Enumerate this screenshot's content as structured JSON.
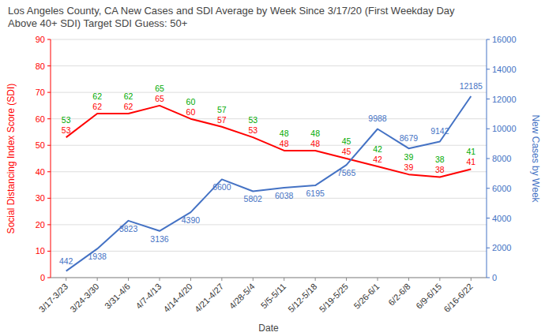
{
  "chart_data": {
    "type": "line",
    "title": "Los Angeles County, CA New Cases and SDI Average by Week Since 3/17/20 (First Weekday Day\nAbove 40+ SDI) Target SDI Guess: 50+",
    "xlabel": "Date",
    "ylabel": "Social Distancing Index Score (SDI)",
    "y2label": "New Cases by Week",
    "categories": [
      "3/17-3/23",
      "3/24-3/30",
      "3/31-4/6",
      "4/7-4/13",
      "4/14-4/20",
      "4/21-4/27",
      "4/28-5/4",
      "5/5-5/11",
      "5/12-5/18",
      "5/19-5/25",
      "5/26-6/1",
      "6/2-6/8",
      "6/9-6/15",
      "6/16-6/22"
    ],
    "series": [
      {
        "values": [
          53,
          62,
          62,
          65,
          60,
          57,
          53,
          48,
          48,
          45,
          42,
          39,
          38,
          41
        ],
        "color": "#ff0000",
        "axis": "y"
      },
      {
        "values": [
          442,
          1938,
          3823,
          3136,
          4390,
          6600,
          5802,
          6038,
          6195,
          7565,
          9988,
          8679,
          9142,
          12185
        ],
        "color": "#4472c4",
        "axis": "y2"
      },
      {
        "values": [
          53,
          62,
          62,
          65,
          60,
          57,
          53,
          48,
          48,
          45,
          42,
          39,
          38,
          41
        ],
        "color": "#00aa00",
        "axis": "y",
        "type": "text"
      }
    ],
    "ylim": [
      0,
      90
    ],
    "yticks": [
      0,
      10,
      20,
      30,
      40,
      50,
      60,
      70,
      80,
      90
    ],
    "y2lim": [
      0,
      16000
    ],
    "y2ticks": [
      0,
      2000,
      4000,
      6000,
      8000,
      10000,
      12000,
      14000,
      16000
    ],
    "grid": true,
    "data_labels": true
  }
}
